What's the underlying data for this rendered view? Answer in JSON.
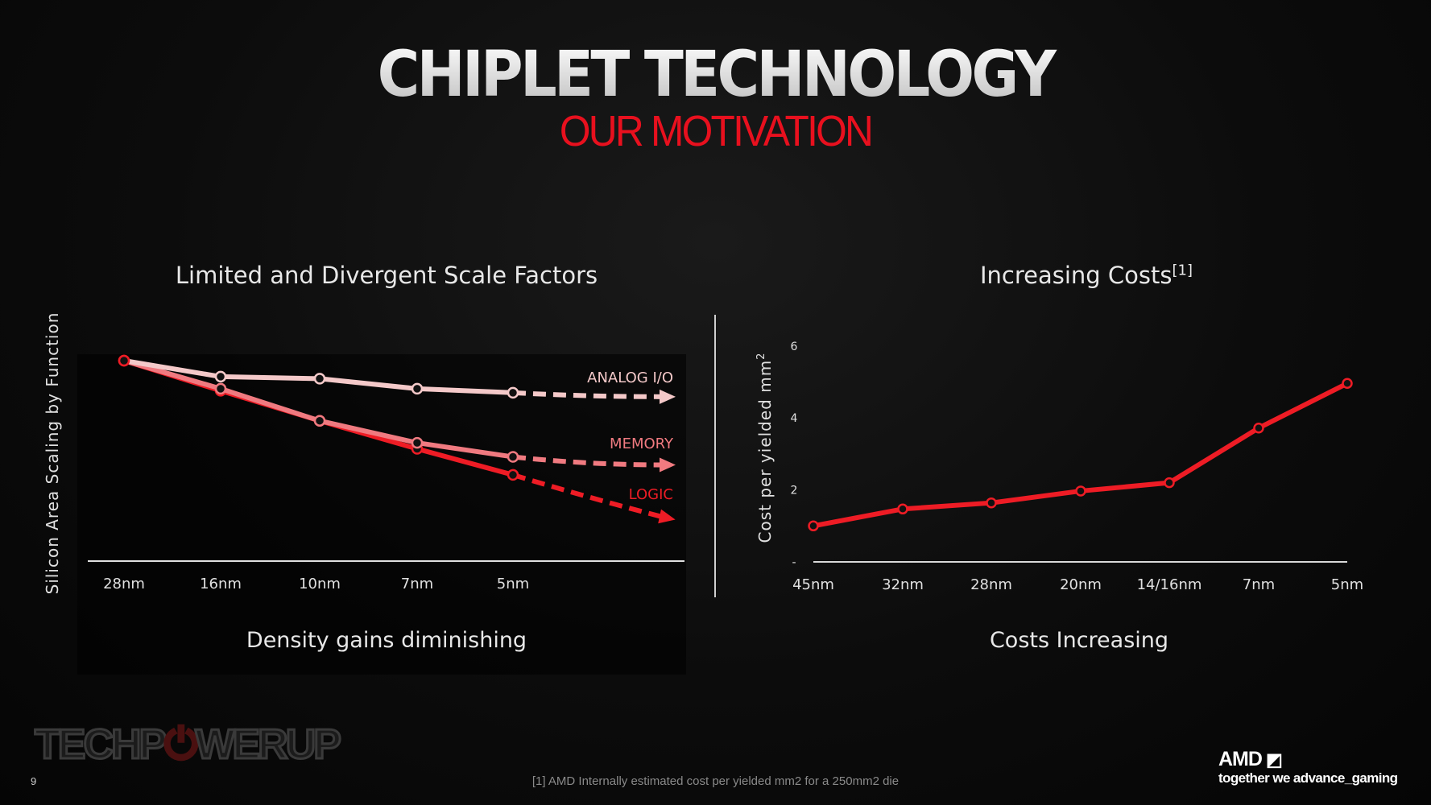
{
  "header": {
    "title": "CHIPLET TECHNOLOGY",
    "subtitle": "OUR MOTIVATION"
  },
  "chart_data": [
    {
      "type": "line",
      "title": "Limited and Divergent Scale Factors",
      "caption": "Density gains diminishing",
      "ylabel": "Silicon Area Scaling by Function",
      "xlabel": "",
      "categories": [
        "28nm",
        "16nm",
        "10nm",
        "7nm",
        "5nm"
      ],
      "y_units": "relative (28nm = 1.0), no printed axis values",
      "grid": false,
      "series": [
        {
          "name": "ANALOG I/O",
          "color": "#f4c9c9",
          "values": [
            1.0,
            0.92,
            0.91,
            0.86,
            0.84
          ],
          "projection": 0.82
        },
        {
          "name": "MEMORY",
          "color": "#f07a80",
          "values": [
            1.0,
            0.86,
            0.7,
            0.59,
            0.52
          ],
          "projection": 0.48
        },
        {
          "name": "LOGIC",
          "color": "#ee1c25",
          "values": [
            1.0,
            0.85,
            0.7,
            0.56,
            0.43
          ],
          "projection": 0.22
        }
      ]
    },
    {
      "type": "line",
      "title": "Increasing Costs",
      "title_sup": "[1]",
      "caption": "Costs Increasing",
      "ylabel": "Cost per yielded mm",
      "ylabel_sup": "2",
      "xlabel": "",
      "categories": [
        "45nm",
        "32nm",
        "28nm",
        "20nm",
        "14/16nm",
        "7nm",
        "5nm"
      ],
      "ylim": [
        0,
        6
      ],
      "yticks": [
        "-",
        "2",
        "4",
        "6"
      ],
      "grid": false,
      "series": [
        {
          "color": "#ee1c25",
          "values": [
            1.0,
            1.47,
            1.64,
            1.97,
            2.2,
            3.72,
            4.96
          ]
        }
      ]
    }
  ],
  "footer": {
    "page_number": "9",
    "footnote": "[1] AMD Internally estimated cost per yielded mm2 for a 250mm2 die",
    "amd_logo": "AMD",
    "tagline": "together we advance_gaming",
    "watermark": "TECHPOWERUP"
  },
  "colors": {
    "accent": "#e8101e",
    "background": "#0a0a0a"
  }
}
